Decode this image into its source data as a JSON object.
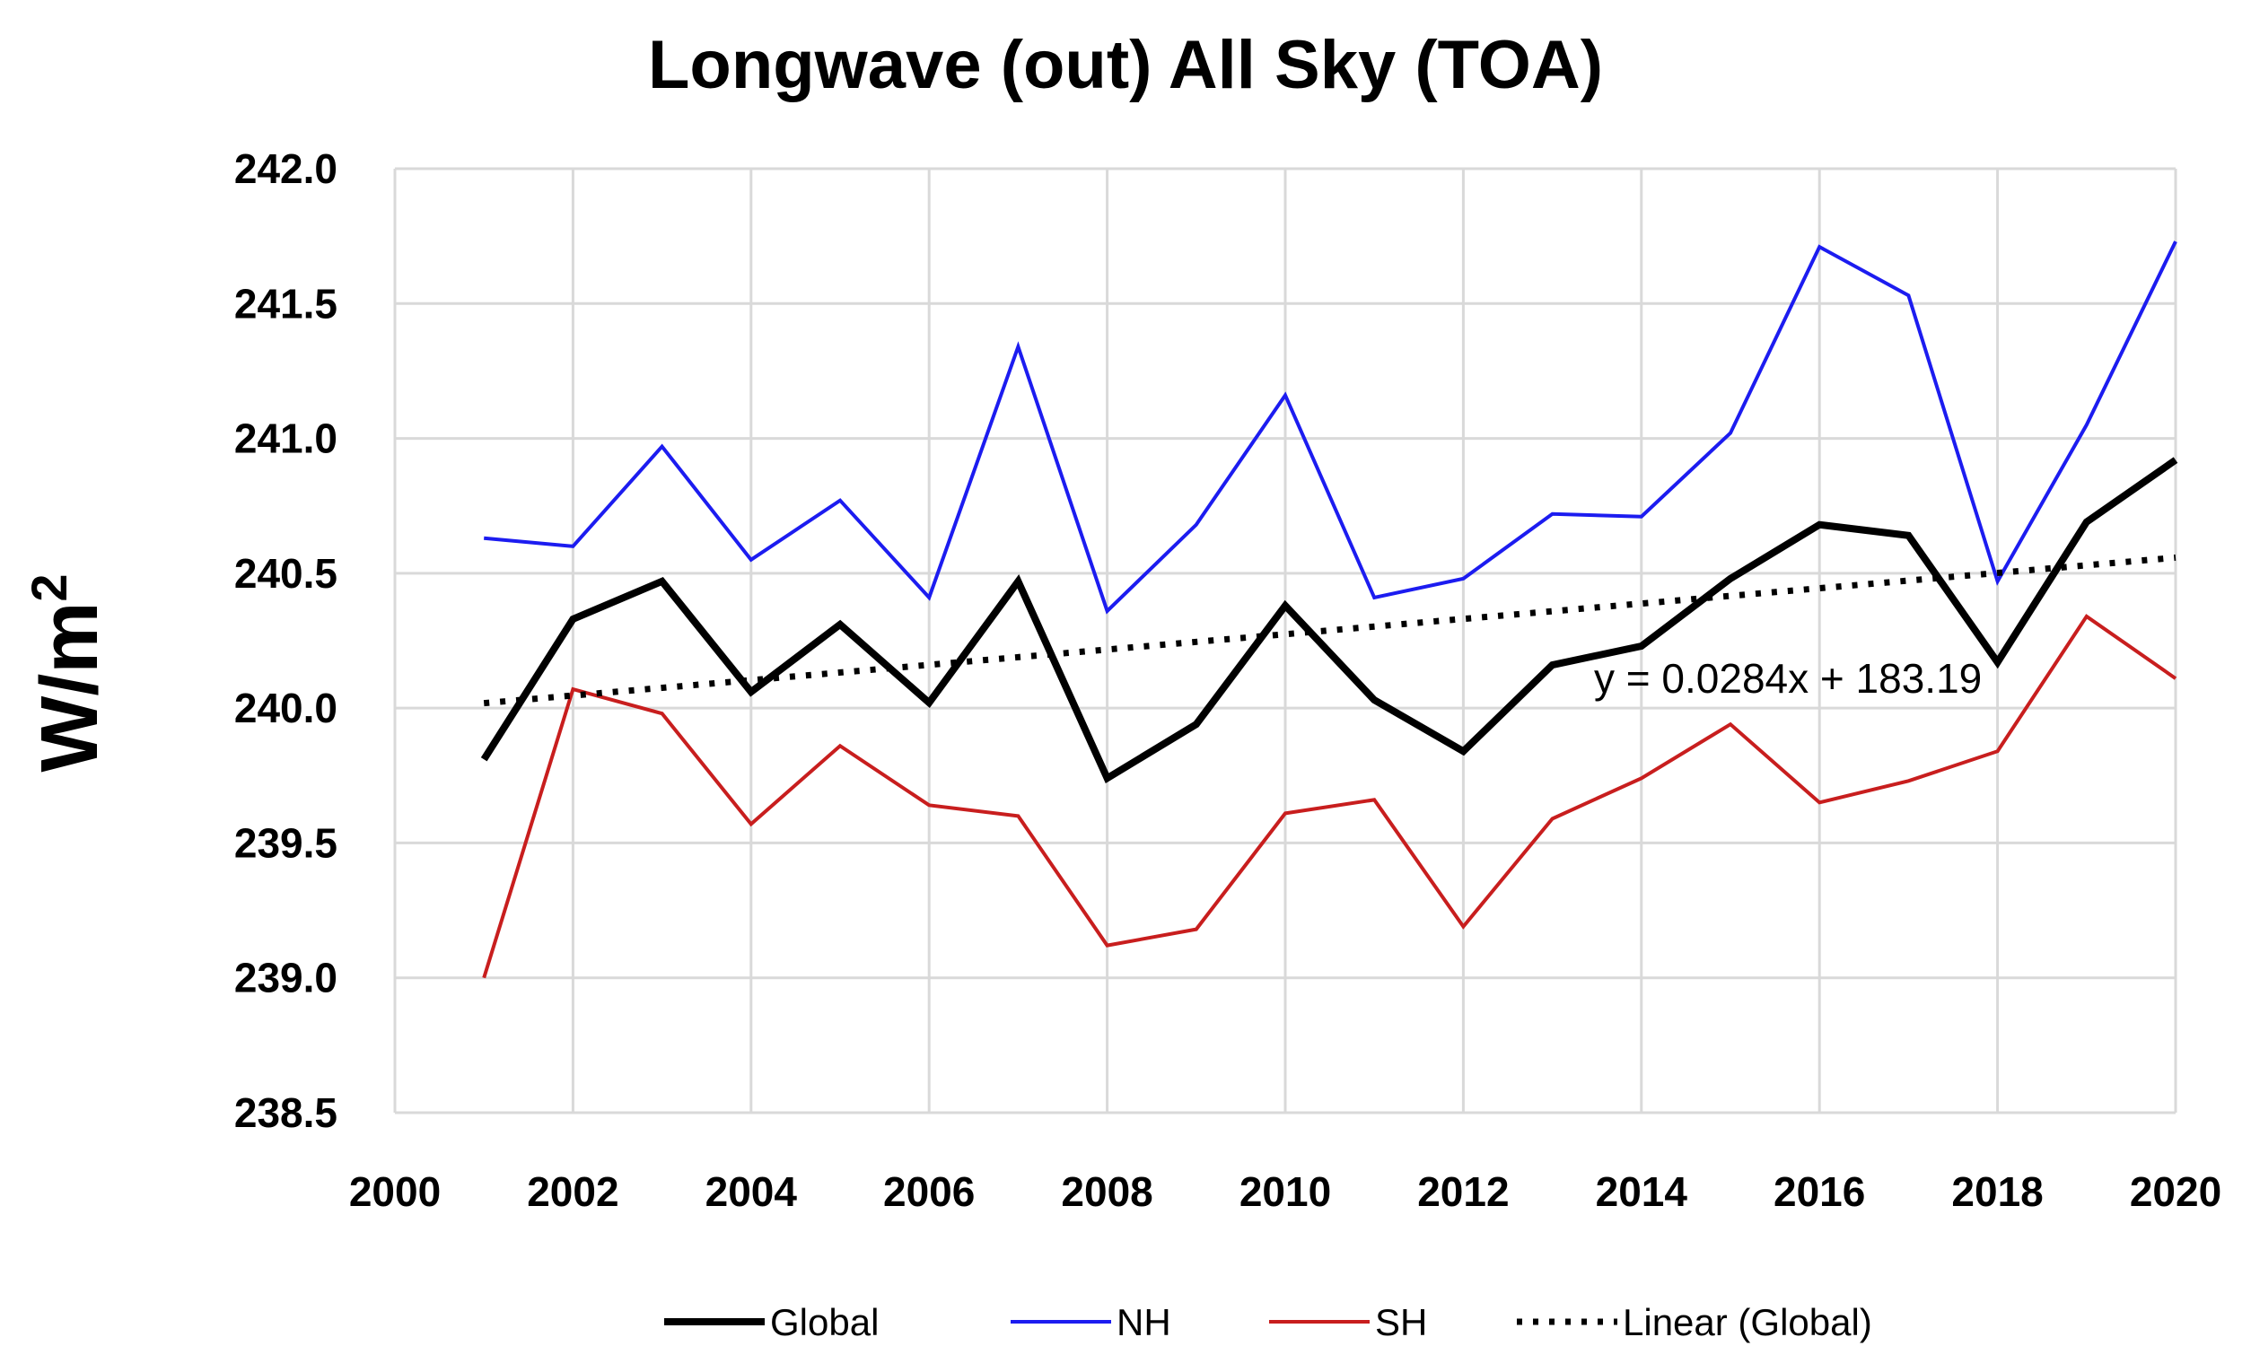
{
  "chart_data": {
    "type": "line",
    "title": "Longwave (out) All Sky (TOA)",
    "ylabel_main": "W/m",
    "ylabel_sup": "2",
    "xlabel": "",
    "xlim": [
      2000,
      2020
    ],
    "ylim": [
      238.5,
      242.0
    ],
    "x_ticks": [
      2000,
      2002,
      2004,
      2006,
      2008,
      2010,
      2012,
      2014,
      2016,
      2018,
      2020
    ],
    "y_ticks": [
      238.5,
      239.0,
      239.5,
      240.0,
      240.5,
      241.0,
      241.5,
      242.0
    ],
    "x": [
      2001,
      2002,
      2003,
      2004,
      2005,
      2006,
      2007,
      2008,
      2009,
      2010,
      2011,
      2012,
      2013,
      2014,
      2015,
      2016,
      2017,
      2018,
      2019,
      2020
    ],
    "series": [
      {
        "name": "Global",
        "color": "#000000",
        "style": "solid-thick",
        "values": [
          239.81,
          240.33,
          240.47,
          240.06,
          240.31,
          240.02,
          240.47,
          239.74,
          239.94,
          240.38,
          240.03,
          239.84,
          240.16,
          240.23,
          240.48,
          240.68,
          240.64,
          240.17,
          240.69,
          240.92
        ]
      },
      {
        "name": "NH",
        "color": "#1c1cf0",
        "style": "solid",
        "values": [
          240.63,
          240.6,
          240.97,
          240.55,
          240.77,
          240.41,
          241.34,
          240.36,
          240.68,
          241.16,
          240.41,
          240.48,
          240.72,
          240.71,
          241.02,
          241.71,
          241.53,
          240.47,
          241.05,
          241.73
        ]
      },
      {
        "name": "SH",
        "color": "#c81e1e",
        "style": "solid",
        "values": [
          239.0,
          240.07,
          239.98,
          239.57,
          239.86,
          239.64,
          239.6,
          239.12,
          239.18,
          239.61,
          239.66,
          239.19,
          239.59,
          239.74,
          239.94,
          239.65,
          239.73,
          239.84,
          240.34,
          240.11
        ]
      }
    ],
    "trendline": {
      "name": "Linear (Global)",
      "color": "#000000",
      "style": "dotted",
      "slope": 0.0284,
      "intercept": 183.19,
      "equation_label": "y = 0.0284x + 183.19"
    },
    "legend_position": "bottom",
    "grid": true
  }
}
